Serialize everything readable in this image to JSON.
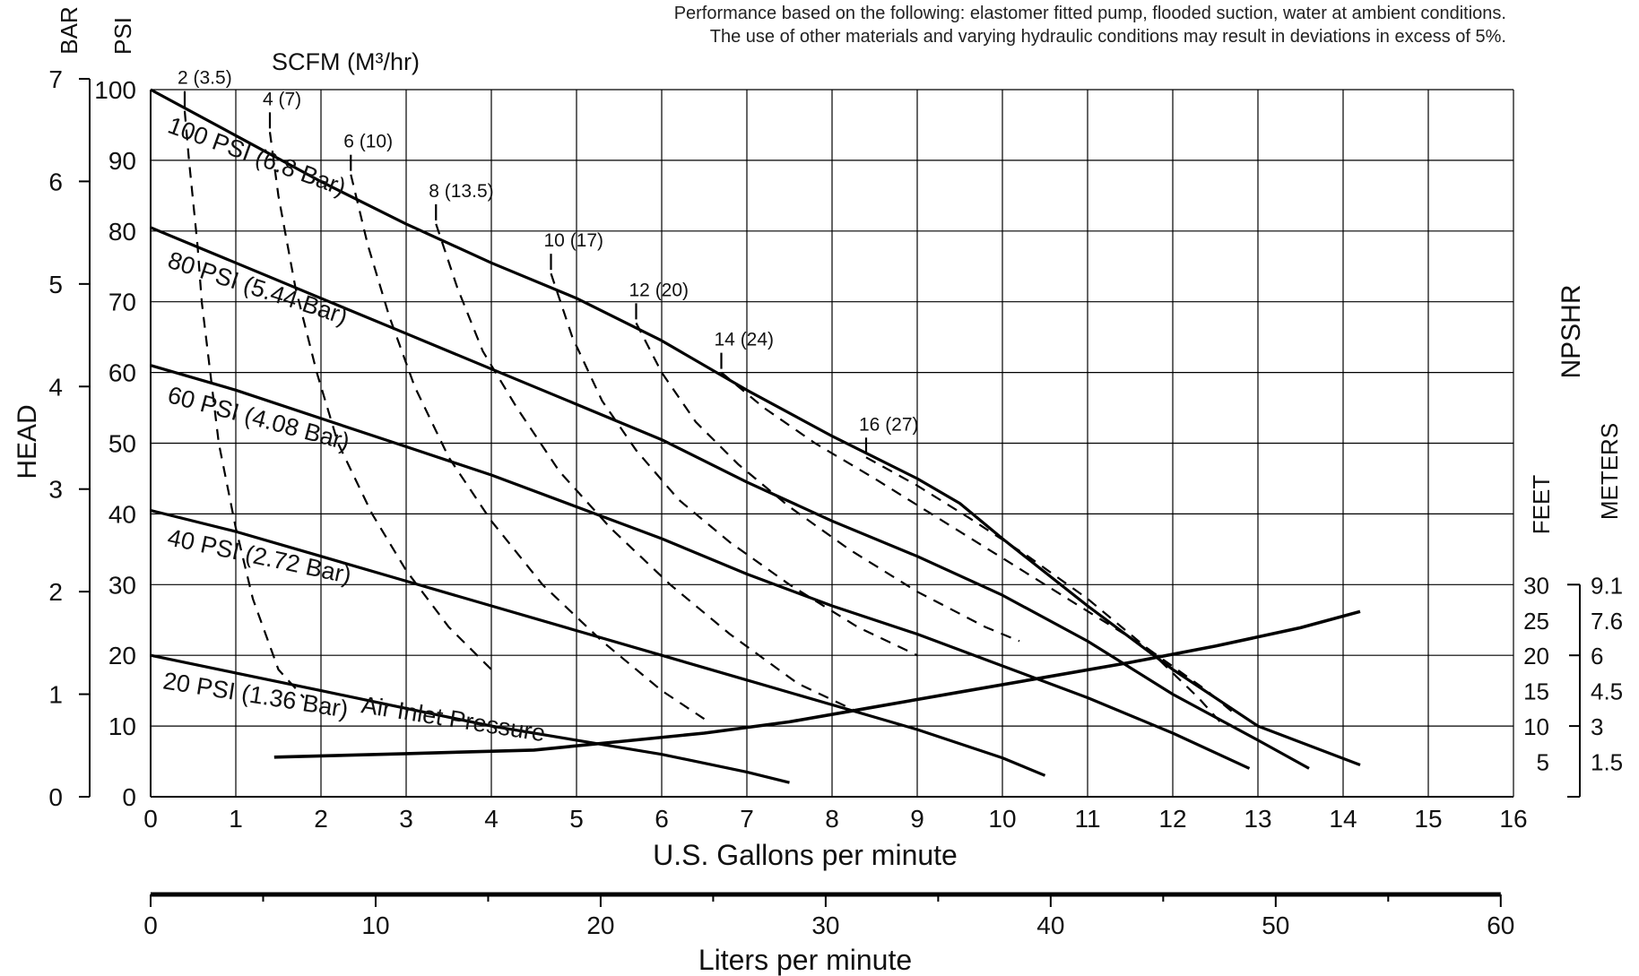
{
  "note": {
    "line1": "Performance based on the following: elastomer fitted pump, flooded suction, water at ambient conditions.",
    "line2": "The use of other materials and varying hydraulic conditions may result in deviations in excess of 5%."
  },
  "chart_data": {
    "type": "line",
    "xlabel": "U.S. Gallons per minute",
    "xlabel_liters": "Liters per minute",
    "ylabel": "HEAD",
    "yunit_bar": "BAR",
    "yunit_psi": "PSI",
    "scfm_label": "SCFM (M³/hr)",
    "npshr_label": "NPSHR",
    "npshr_feet_label": "FEET",
    "npshr_meters_label": "METERS",
    "xlim": [
      0,
      16
    ],
    "ylim": [
      0,
      100
    ],
    "grid": true,
    "x_ticks": [
      "0",
      "1",
      "2",
      "3",
      "4",
      "5",
      "6",
      "7",
      "8",
      "9",
      "10",
      "11",
      "12",
      "13",
      "14",
      "15",
      "16"
    ],
    "psi_ticks": [
      "0",
      "10",
      "20",
      "30",
      "40",
      "50",
      "60",
      "70",
      "80",
      "90",
      "100"
    ],
    "bar_ticks": [
      {
        "value": 0,
        "label": "0"
      },
      {
        "value": 1,
        "label": "1"
      },
      {
        "value": 2,
        "label": "2"
      },
      {
        "value": 3,
        "label": "3"
      },
      {
        "value": 4,
        "label": "4"
      },
      {
        "value": 5,
        "label": "5"
      },
      {
        "value": 6,
        "label": "6"
      },
      {
        "value": 7,
        "label": "7"
      }
    ],
    "lpm_ticks": [
      "0",
      "10",
      "20",
      "30",
      "40",
      "50",
      "60"
    ],
    "npshr_ticks": [
      {
        "feet": "30",
        "meters": "9.1",
        "psi": 30
      },
      {
        "feet": "25",
        "meters": "7.6",
        "psi": 25
      },
      {
        "feet": "20",
        "meters": "6",
        "psi": 20
      },
      {
        "feet": "15",
        "meters": "4.5",
        "psi": 15
      },
      {
        "feet": "10",
        "meters": "3",
        "psi": 10
      },
      {
        "feet": "5",
        "meters": "1.5",
        "psi": 5
      }
    ],
    "air_pressure_series": [
      {
        "label": "100 PSI (6.8 Bar)",
        "x": [
          0,
          1,
          2,
          3,
          4,
          5,
          6,
          7,
          8,
          9,
          9.5,
          10,
          11,
          12,
          13,
          14.2
        ],
        "y": [
          100,
          93.5,
          87,
          81,
          75.5,
          70.5,
          64.5,
          57.5,
          51,
          45,
          41.5,
          36.5,
          27,
          18,
          10,
          4.5
        ]
      },
      {
        "label": "80 PSI (5.44 Bar)",
        "x": [
          0,
          1,
          2,
          3,
          4,
          5,
          6,
          7,
          8,
          9,
          10,
          11,
          12,
          13,
          13.6
        ],
        "y": [
          80.5,
          75.5,
          70.5,
          65.5,
          60.5,
          55.5,
          50.5,
          44.5,
          39,
          34,
          28.5,
          22,
          14.5,
          8,
          4
        ]
      },
      {
        "label": "60 PSI (4.08 Bar)",
        "x": [
          0,
          1,
          2,
          3,
          4,
          5,
          6,
          7,
          8,
          9,
          10,
          11,
          12,
          12.9
        ],
        "y": [
          61,
          57.5,
          53.5,
          49.5,
          45.5,
          41,
          36.5,
          31.5,
          27,
          23,
          18.5,
          14,
          9,
          4
        ]
      },
      {
        "label": "40 PSI (2.72 Bar)",
        "x": [
          0,
          1,
          2,
          3,
          4,
          5,
          6,
          7,
          8,
          9,
          10,
          10.5
        ],
        "y": [
          40.5,
          37.5,
          34,
          30.5,
          27,
          23.5,
          20,
          16.5,
          13,
          9.5,
          5.5,
          3
        ]
      },
      {
        "label": "20 PSI (1.36 Bar)",
        "x": [
          0,
          1,
          2,
          3,
          4,
          5,
          6,
          7,
          7.5
        ],
        "y": [
          20,
          17.5,
          15,
          12.5,
          10,
          8,
          6,
          3.5,
          2
        ]
      }
    ],
    "series_note": "Air Inlet Pressure",
    "scfm_curves": [
      {
        "label": "2 (3.5)",
        "x": [
          0.4,
          0.45,
          0.55,
          0.6,
          0.7,
          0.8,
          1.0,
          1.2,
          1.5,
          1.8
        ],
        "y": [
          97,
          90,
          78,
          70,
          60,
          50,
          38,
          28,
          18,
          14
        ]
      },
      {
        "label": "4 (7)",
        "x": [
          1.4,
          1.5,
          1.7,
          1.95,
          2.2,
          2.6,
          3.0,
          3.5,
          4.0
        ],
        "y": [
          94,
          85,
          72,
          60,
          50,
          40,
          32,
          24,
          18
        ]
      },
      {
        "label": "6 (10)",
        "x": [
          2.35,
          2.55,
          2.8,
          3.1,
          3.5,
          4.0,
          4.6,
          5.3,
          6.0,
          6.5
        ],
        "y": [
          88,
          78,
          68,
          58,
          48,
          39,
          30,
          22,
          15,
          11
        ]
      },
      {
        "label": "8 (13.5)",
        "x": [
          3.35,
          3.6,
          3.9,
          4.3,
          4.8,
          5.4,
          6.1,
          6.8,
          7.6,
          8.3
        ],
        "y": [
          81,
          72,
          63,
          55,
          46,
          38,
          30,
          23,
          16,
          12
        ]
      },
      {
        "label": "10 (17)",
        "x": [
          4.7,
          4.95,
          5.3,
          5.7,
          6.2,
          6.8,
          7.5,
          8.3,
          9.0
        ],
        "y": [
          74,
          65,
          56,
          49,
          42,
          36,
          30,
          24,
          20
        ]
      },
      {
        "label": "12 (20)",
        "x": [
          5.7,
          6.0,
          6.4,
          6.9,
          7.5,
          8.2,
          9.0,
          9.8,
          10.2
        ],
        "y": [
          67,
          60,
          53,
          47,
          41,
          35,
          29,
          24,
          22
        ]
      },
      {
        "label": "14 (24)",
        "x": [
          6.7,
          7.2,
          7.8,
          8.5,
          9.3,
          10.1,
          10.9,
          11.7,
          12.4,
          12.7
        ],
        "y": [
          60,
          55,
          50,
          45,
          39,
          33,
          27,
          21,
          15,
          12
        ]
      },
      {
        "label": "16 (27)",
        "x": [
          8.4,
          9.0,
          9.6,
          10.3,
          11.0,
          11.7,
          12.3,
          12.6
        ],
        "y": [
          48,
          44,
          39.5,
          34,
          28,
          21,
          14,
          10
        ]
      }
    ],
    "npshr_curve": {
      "x": [
        1.45,
        3,
        4.5,
        5.5,
        6.5,
        7.5,
        8.5,
        9.5,
        10.5,
        11.5,
        12.5,
        13.5,
        14.2
      ],
      "y": [
        5.6,
        6.1,
        6.6,
        7.8,
        9.0,
        10.6,
        12.7,
        14.8,
        16.9,
        19.0,
        21.3,
        23.9,
        26.2
      ]
    }
  }
}
